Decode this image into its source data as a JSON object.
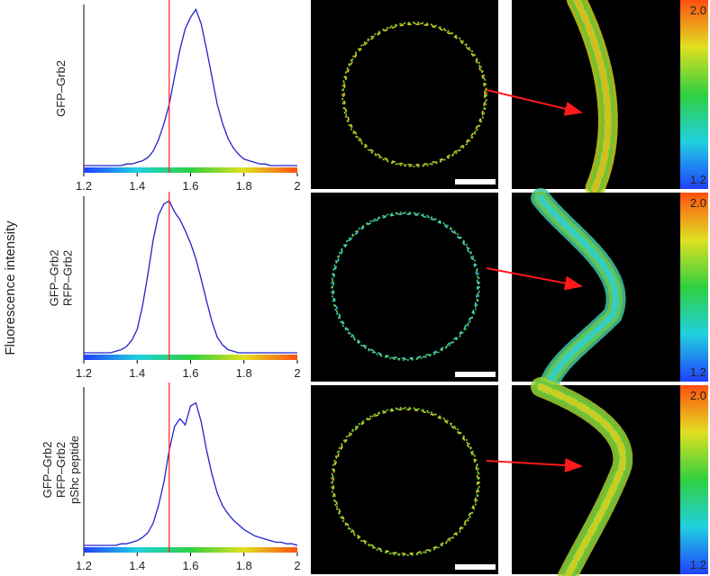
{
  "figure": {
    "ylabel": "Fluorescence intensity"
  },
  "chart_data": [
    {
      "type": "line",
      "row_label": [
        "GFP–Grb2"
      ],
      "color": "#2222cc",
      "reference_line": 1.52,
      "reference_color": "#ff2020",
      "x": [
        1.2,
        1.22,
        1.24,
        1.26,
        1.28,
        1.3,
        1.32,
        1.34,
        1.36,
        1.38,
        1.4,
        1.42,
        1.44,
        1.46,
        1.48,
        1.5,
        1.52,
        1.54,
        1.56,
        1.58,
        1.6,
        1.62,
        1.64,
        1.66,
        1.68,
        1.7,
        1.72,
        1.74,
        1.76,
        1.78,
        1.8,
        1.82,
        1.84,
        1.86,
        1.88,
        1.9,
        1.92,
        1.94,
        1.96,
        1.98,
        2.0
      ],
      "values": [
        0,
        0,
        0,
        0,
        0,
        0,
        0,
        0,
        0.01,
        0.01,
        0.02,
        0.03,
        0.05,
        0.09,
        0.16,
        0.26,
        0.38,
        0.55,
        0.72,
        0.85,
        0.92,
        0.97,
        0.88,
        0.72,
        0.55,
        0.38,
        0.26,
        0.17,
        0.11,
        0.07,
        0.04,
        0.03,
        0.02,
        0.01,
        0.01,
        0,
        0,
        0,
        0,
        0,
        0
      ],
      "xlim": [
        1.2,
        2.0
      ],
      "xticks": [
        1.2,
        1.4,
        1.6,
        1.8,
        2
      ],
      "ylim": [
        0,
        1
      ],
      "colorbar_ticks": [
        {
          "value": 2.0,
          "label": "2.0"
        },
        {
          "value": 1.2,
          "label": "1.2"
        }
      ]
    },
    {
      "type": "line",
      "row_label": [
        "GFP–Grb2",
        "RFP–Grb2"
      ],
      "color": "#2222cc",
      "reference_line": 1.52,
      "reference_color": "#ff2020",
      "x": [
        1.2,
        1.22,
        1.24,
        1.26,
        1.28,
        1.3,
        1.32,
        1.34,
        1.36,
        1.38,
        1.4,
        1.42,
        1.44,
        1.46,
        1.48,
        1.5,
        1.52,
        1.54,
        1.56,
        1.58,
        1.6,
        1.62,
        1.64,
        1.66,
        1.68,
        1.7,
        1.72,
        1.74,
        1.76,
        1.78,
        1.8,
        1.82,
        1.84,
        1.86,
        1.88,
        1.9,
        1.92,
        1.94,
        1.96,
        1.98,
        2.0
      ],
      "values": [
        0,
        0,
        0,
        0,
        0,
        0,
        0.01,
        0.02,
        0.04,
        0.08,
        0.15,
        0.3,
        0.5,
        0.72,
        0.88,
        0.95,
        0.97,
        0.9,
        0.85,
        0.78,
        0.7,
        0.6,
        0.47,
        0.33,
        0.2,
        0.1,
        0.05,
        0.02,
        0.01,
        0,
        0,
        0,
        0,
        0,
        0,
        0,
        0,
        0,
        0,
        0,
        0
      ],
      "xlim": [
        1.2,
        2.0
      ],
      "xticks": [
        1.2,
        1.4,
        1.6,
        1.8,
        2
      ],
      "ylim": [
        0,
        1
      ],
      "colorbar_ticks": [
        {
          "value": 2.0,
          "label": "2.0"
        },
        {
          "value": 1.2,
          "label": "1.2"
        }
      ]
    },
    {
      "type": "line",
      "row_label": [
        "GFP–Grb2",
        "RFP–Grb2",
        "pShc peptide"
      ],
      "color": "#2222cc",
      "reference_line": 1.52,
      "reference_color": "#ff2020",
      "x": [
        1.2,
        1.22,
        1.24,
        1.26,
        1.28,
        1.3,
        1.32,
        1.34,
        1.36,
        1.38,
        1.4,
        1.42,
        1.44,
        1.46,
        1.48,
        1.5,
        1.52,
        1.54,
        1.56,
        1.58,
        1.6,
        1.62,
        1.64,
        1.66,
        1.68,
        1.7,
        1.72,
        1.74,
        1.76,
        1.78,
        1.8,
        1.82,
        1.84,
        1.86,
        1.88,
        1.9,
        1.92,
        1.94,
        1.96,
        1.98,
        2.0
      ],
      "values": [
        0,
        0,
        0,
        0,
        0,
        0,
        0,
        0.01,
        0.01,
        0.02,
        0.03,
        0.05,
        0.08,
        0.14,
        0.25,
        0.4,
        0.6,
        0.75,
        0.8,
        0.76,
        0.88,
        0.9,
        0.78,
        0.6,
        0.45,
        0.33,
        0.25,
        0.2,
        0.16,
        0.13,
        0.1,
        0.08,
        0.06,
        0.05,
        0.04,
        0.03,
        0.02,
        0.02,
        0.01,
        0.01,
        0
      ],
      "xlim": [
        1.2,
        2.0
      ],
      "xticks": [
        1.2,
        1.4,
        1.6,
        1.8,
        2
      ],
      "ylim": [
        0,
        1
      ],
      "colorbar_ticks": [
        {
          "value": 2.0,
          "label": "2.0"
        },
        {
          "value": 1.2,
          "label": "1.2"
        }
      ]
    }
  ]
}
